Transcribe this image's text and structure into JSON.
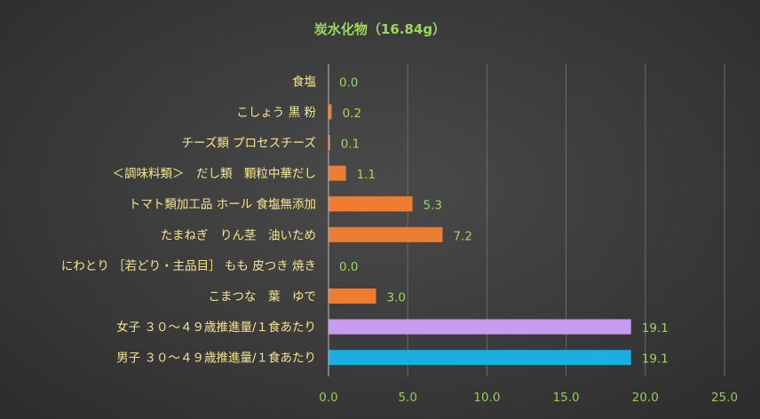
{
  "chart_data": {
    "type": "bar",
    "orientation": "horizontal",
    "title": "炭水化物（16.84g）",
    "categories": [
      "食塩",
      "こしょう 黒 粉",
      "チーズ類 プロセスチーズ",
      "＜調味料類＞　だし類　顆粒中華だし",
      "トマト類加工品 ホール 食塩無添加",
      "たまねぎ　りん茎　油いため",
      "にわとり ［若どり・主品目］ もも 皮つき 焼き",
      "こまつな　葉　ゆで",
      "女子 ３０～４９歳推進量/１食あたり",
      "男子 ３０～４９歳推進量/１食あたり"
    ],
    "values": [
      0.0,
      0.2,
      0.1,
      1.1,
      5.3,
      7.2,
      0.0,
      3.0,
      19.1,
      19.1
    ],
    "value_labels": [
      "0.0",
      "0.2",
      "0.1",
      "1.1",
      "5.3",
      "7.2",
      "0.0",
      "3.0",
      "19.1",
      "19.1"
    ],
    "colors": [
      "#ed7d31",
      "#ed7d31",
      "#ed7d31",
      "#ed7d31",
      "#ed7d31",
      "#ed7d31",
      "#ed7d31",
      "#ed7d31",
      "#c79bf2",
      "#1aaee5"
    ],
    "xlim": [
      0,
      25
    ],
    "xticks": [
      0,
      5,
      10,
      15,
      20,
      25
    ],
    "xtick_labels": [
      "0.0",
      "5.0",
      "10.0",
      "15.0",
      "20.0",
      "25.0"
    ],
    "grid": true,
    "legend": "none"
  }
}
